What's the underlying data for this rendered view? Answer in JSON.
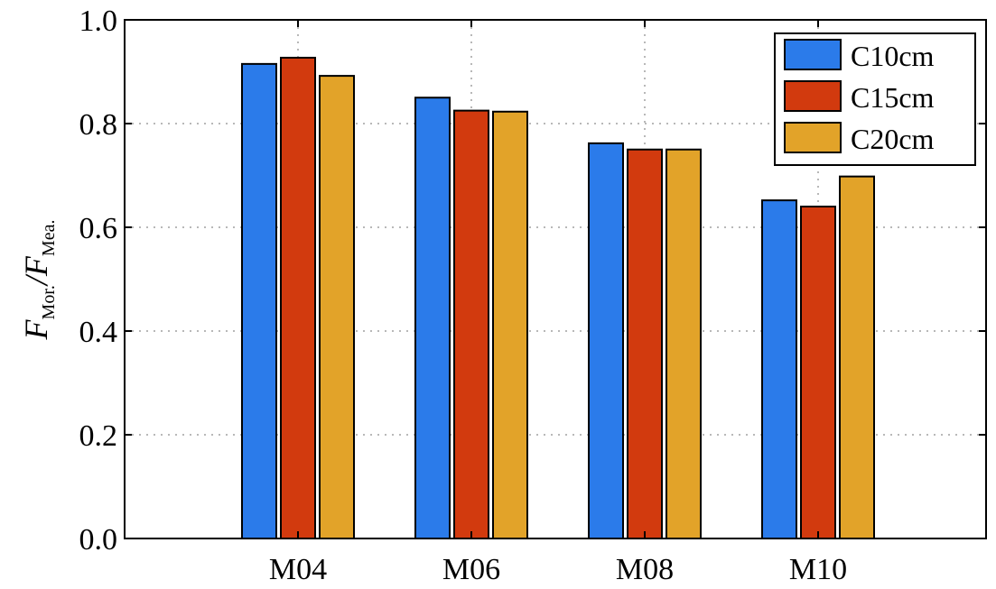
{
  "chart_data": {
    "type": "bar",
    "title": "",
    "xlabel": "",
    "ylabel": {
      "numerator": "F",
      "numerator_sub": "Mor.",
      "separator": "/",
      "denominator": "F",
      "denominator_sub": "Mea."
    },
    "categories": [
      "M04",
      "M06",
      "M08",
      "M10"
    ],
    "series": [
      {
        "name": "C10cm",
        "color": "#2b7bea",
        "values": [
          0.915,
          0.85,
          0.762,
          0.652
        ]
      },
      {
        "name": "C15cm",
        "color": "#d23a0e",
        "values": [
          0.927,
          0.825,
          0.75,
          0.64
        ]
      },
      {
        "name": "C20cm",
        "color": "#e2a329",
        "values": [
          0.892,
          0.823,
          0.75,
          0.698
        ]
      }
    ],
    "ylim": [
      0.0,
      1.0
    ],
    "yticks": [
      "0.0",
      "0.2",
      "0.4",
      "0.6",
      "0.8",
      "1.0"
    ],
    "grid": true,
    "legend_position": "top-right"
  }
}
